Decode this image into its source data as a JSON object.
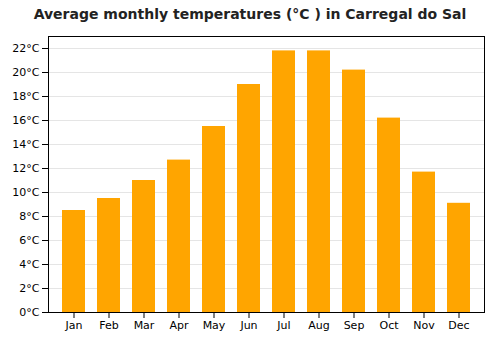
{
  "chart_data": {
    "type": "bar",
    "title": "Average monthly temperatures (°C ) in Carregal do Sal",
    "categories": [
      "Jan",
      "Feb",
      "Mar",
      "Apr",
      "May",
      "Jun",
      "Jul",
      "Aug",
      "Sep",
      "Oct",
      "Nov",
      "Dec"
    ],
    "values": [
      8.5,
      9.5,
      11.0,
      12.7,
      15.5,
      19.0,
      21.8,
      21.8,
      20.2,
      16.2,
      11.7,
      9.1
    ],
    "color": "#FFA500",
    "ylim": [
      0,
      23
    ],
    "yticks": [
      {
        "value": 0,
        "label": "0°C"
      },
      {
        "value": 2,
        "label": "2°C"
      },
      {
        "value": 4,
        "label": "4°C"
      },
      {
        "value": 6,
        "label": "6°C"
      },
      {
        "value": 8,
        "label": "8°C"
      },
      {
        "value": 10,
        "label": "10°C"
      },
      {
        "value": 12,
        "label": "12°C"
      },
      {
        "value": 14,
        "label": "14°C"
      },
      {
        "value": 16,
        "label": "16°C"
      },
      {
        "value": 18,
        "label": "18°C"
      },
      {
        "value": 20,
        "label": "20°C"
      },
      {
        "value": 22,
        "label": "22°C"
      }
    ],
    "grid": true
  }
}
